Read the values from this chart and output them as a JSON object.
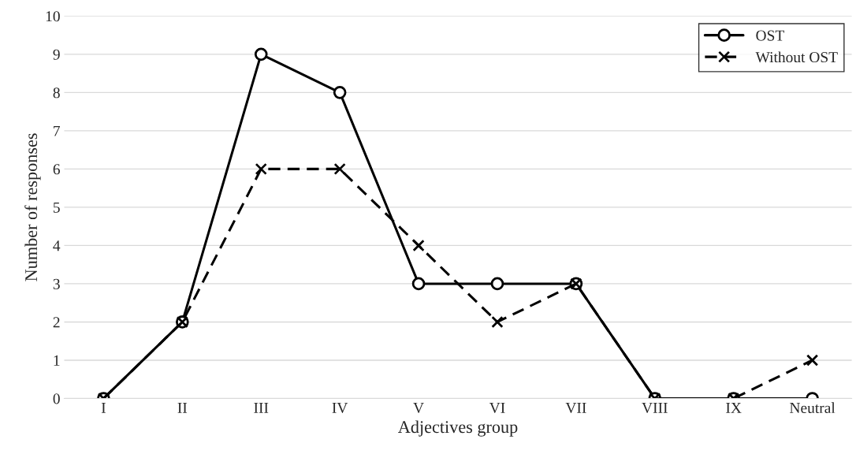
{
  "chart_data": {
    "type": "line",
    "xlabel": "Adjectives group",
    "ylabel": "Number of responses",
    "categories": [
      "I",
      "II",
      "III",
      "IV",
      "V",
      "VI",
      "VII",
      "VIII",
      "IX",
      "Neutral"
    ],
    "series": [
      {
        "name": "OST",
        "color": "#000000",
        "marker": "circle",
        "line_style": "solid",
        "values": [
          0,
          2,
          9,
          8,
          3,
          3,
          3,
          0,
          0,
          0
        ]
      },
      {
        "name": "Without OST",
        "color": "#000000",
        "marker": "cross",
        "line_style": "dashed",
        "values": [
          0,
          2,
          6,
          6,
          4,
          2,
          3,
          0,
          0,
          1
        ]
      }
    ],
    "ylim": [
      0,
      10
    ],
    "yticks": [
      0,
      1,
      2,
      3,
      4,
      5,
      6,
      7,
      8,
      9,
      10
    ],
    "grid": "y",
    "legend": "top right"
  }
}
